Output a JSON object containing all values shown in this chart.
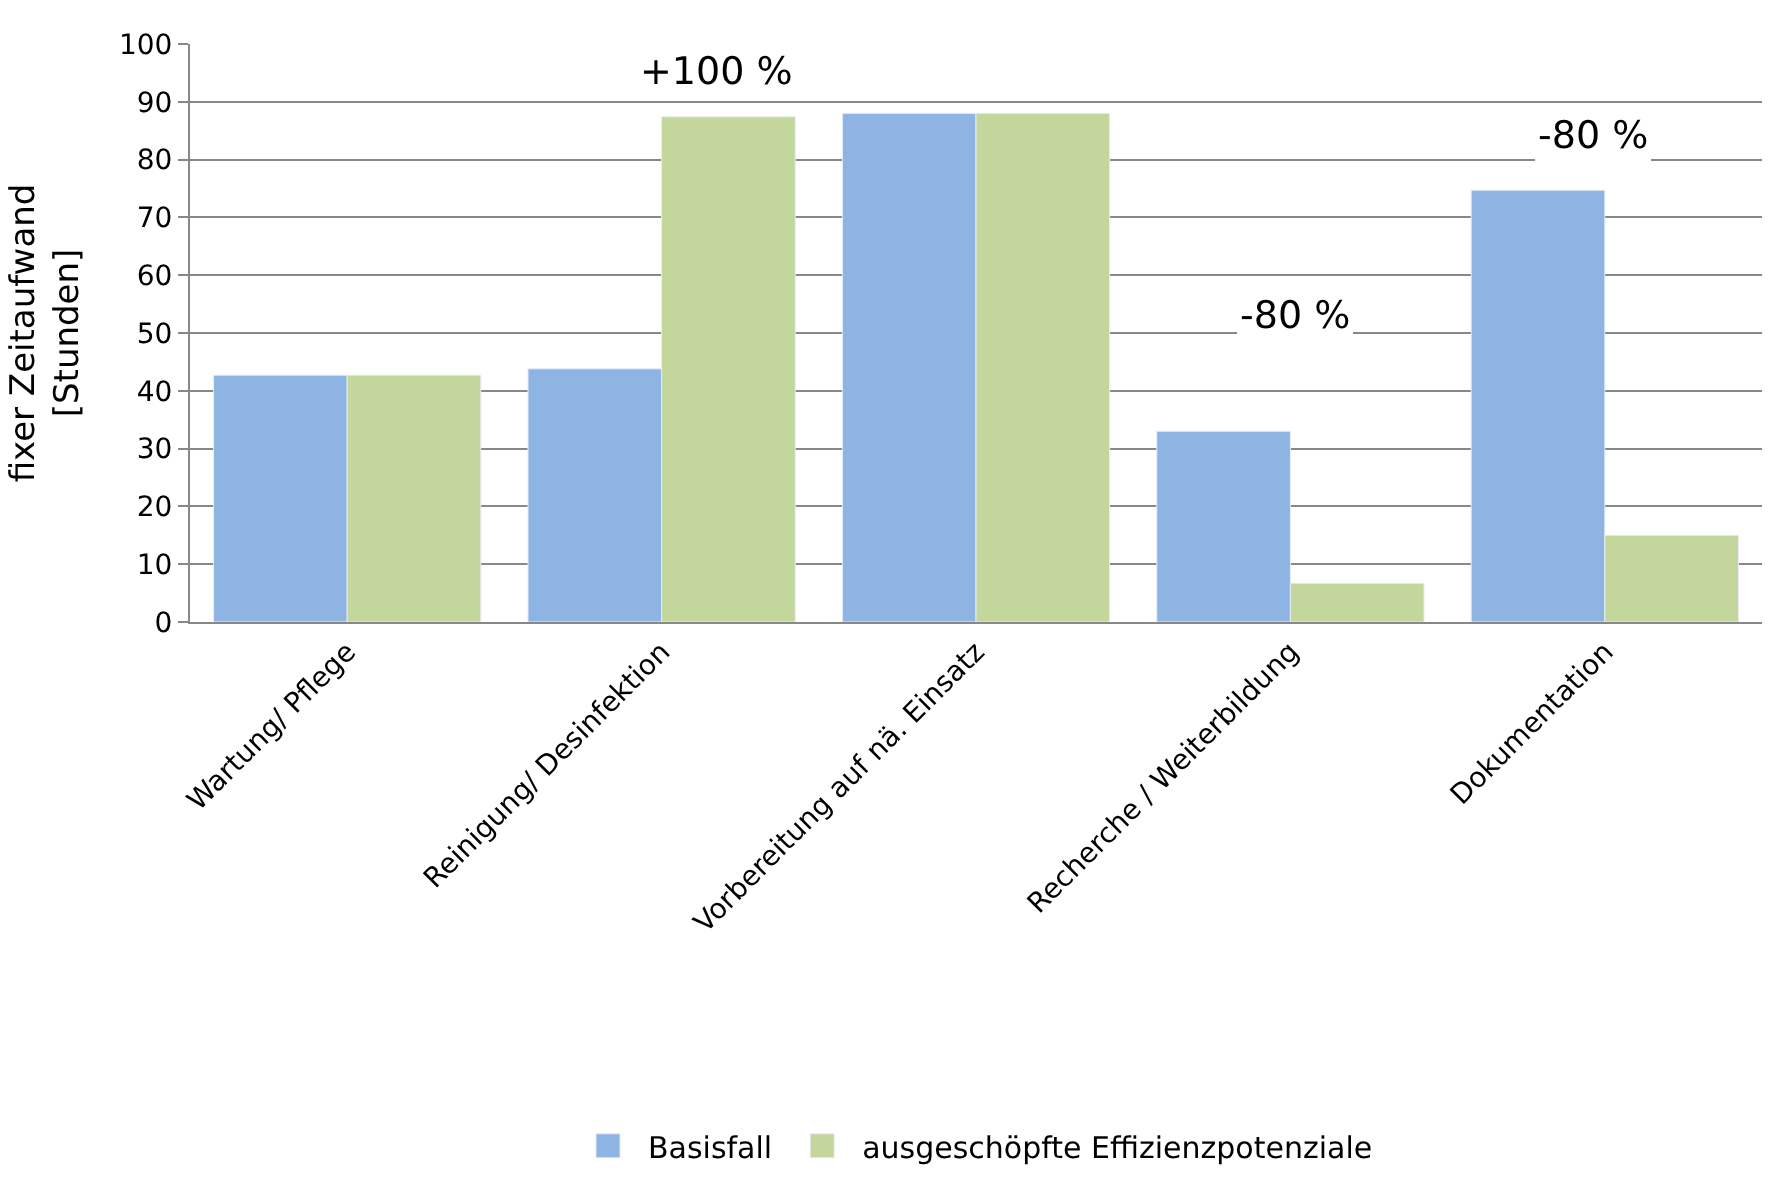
{
  "chart_data": {
    "type": "bar",
    "ylabel": "fixer Zeitaufwand\n[Stunden]",
    "categories": [
      "Wartung/ Pflege",
      "Reinigung/ Desinfektion",
      "Vorbereitung auf nä. Einsatz",
      "Recherche / Weiterbildung",
      "Dokumentation"
    ],
    "series": [
      {
        "name": "Basisfall",
        "color": "#8eb4e3",
        "values": [
          42.7,
          43.8,
          88,
          33,
          74.7
        ]
      },
      {
        "name": "ausgeschöpfte Effizienzpotenziale",
        "color": "#c3d69b",
        "values": [
          42.7,
          87.4,
          88,
          6.7,
          15
        ]
      }
    ],
    "ylim": [
      0,
      100
    ],
    "yticks": [
      0,
      10,
      20,
      30,
      40,
      50,
      60,
      70,
      80,
      90,
      100
    ],
    "grid": "y",
    "legend": "bottom",
    "annotations": [
      "+100 %",
      "-80 %",
      "-80 %"
    ]
  }
}
